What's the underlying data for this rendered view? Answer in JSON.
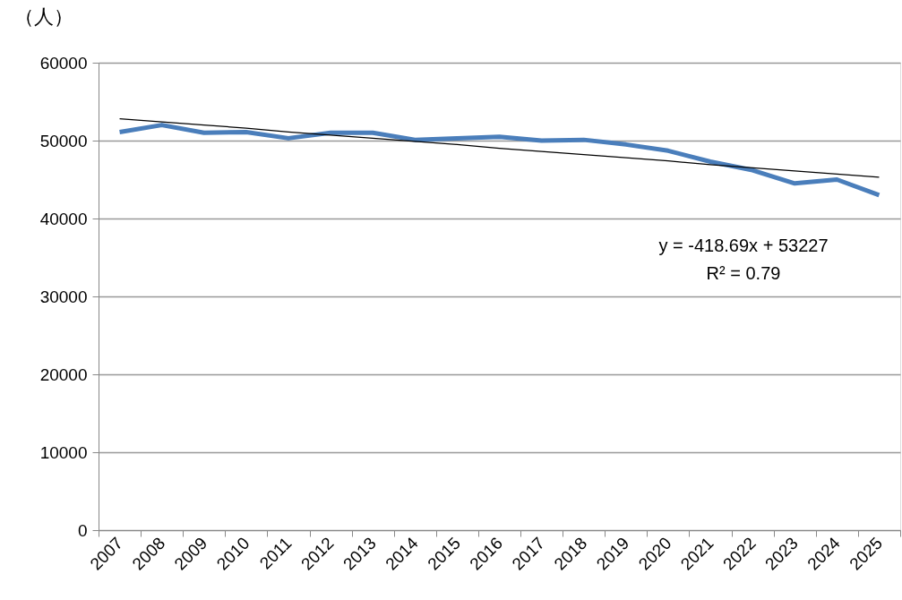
{
  "chart_data": {
    "type": "line",
    "ylabel": "（人）",
    "categories": [
      "2007",
      "2008",
      "2009",
      "2010",
      "2011",
      "2012",
      "2013",
      "2014",
      "2015",
      "2016",
      "2017",
      "2018",
      "2019",
      "2020",
      "2021",
      "2022",
      "2023",
      "2024",
      "2025"
    ],
    "series": [
      {
        "color": "#4a7ebb",
        "values": [
          51100,
          52000,
          51000,
          51100,
          50300,
          51000,
          51000,
          50100,
          50300,
          50500,
          50000,
          50100,
          49500,
          48700,
          47300,
          46200,
          44500,
          45000,
          43000
        ]
      },
      {
        "type": "line",
        "color": "#000000",
        "values": [
          52800,
          52400,
          52000,
          51600,
          51100,
          50700,
          50300,
          49900,
          49500,
          49000,
          48600,
          48200,
          47800,
          47400,
          46900,
          46500,
          46100,
          45700,
          45300
        ]
      }
    ],
    "ylim": [
      0,
      60000
    ],
    "yticks": [
      0,
      10000,
      20000,
      30000,
      40000,
      50000,
      60000
    ],
    "grid": "y",
    "marker": "none",
    "line_style": "solid",
    "annotations": [
      "y = -418.69x + 53227",
      "R² = 0.79"
    ]
  }
}
